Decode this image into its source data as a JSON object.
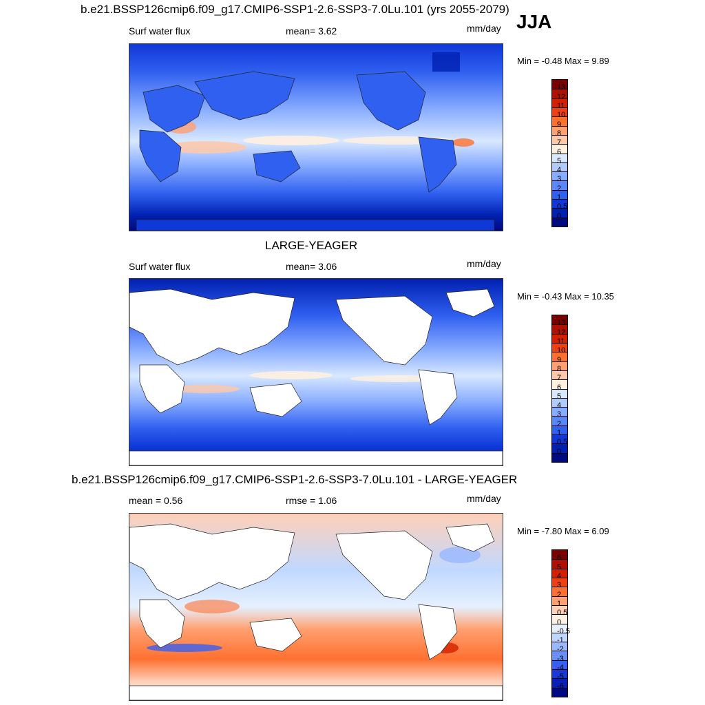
{
  "season": "JJA",
  "panels": [
    {
      "title": "b.e21.BSSP126cmip6.f09_g17.CMIP6-SSP1-2.6-SSP3-7.0Lu.101 (yrs 2055-2079)",
      "left_label": "Surf water flux",
      "center_label": "mean=   3.62",
      "units": "mm/day",
      "minmax": "Min =  -0.48 Max =   9.89",
      "colorbar_ticks": [
        "13",
        "12",
        "11",
        "10",
        "9",
        "8",
        "7",
        "6",
        "5",
        "4",
        "3",
        "2",
        "1",
        "0.5",
        "0"
      ],
      "colorbar_colors": [
        "#7a0000",
        "#b01000",
        "#d42000",
        "#f04010",
        "#ff7030",
        "#ffa070",
        "#ffc8a8",
        "#fff0e0",
        "#d8e8ff",
        "#b0ccff",
        "#88acff",
        "#5888f8",
        "#3060f0",
        "#1038d8",
        "#0020b0",
        "#000a80"
      ]
    },
    {
      "title": "LARGE-YEAGER",
      "left_label": "Surf water flux",
      "center_label": "mean=   3.06",
      "units": "mm/day",
      "minmax": "Min =  -0.43 Max =  10.35",
      "colorbar_ticks": [
        "13",
        "12",
        "11",
        "10",
        "9",
        "8",
        "7",
        "6",
        "5",
        "4",
        "3",
        "2",
        "1",
        "0.5",
        "0"
      ],
      "colorbar_colors": [
        "#7a0000",
        "#b01000",
        "#d42000",
        "#f04010",
        "#ff7030",
        "#ffa070",
        "#ffc8a8",
        "#fff0e0",
        "#d8e8ff",
        "#b0ccff",
        "#88acff",
        "#5888f8",
        "#3060f0",
        "#1038d8",
        "#0020b0",
        "#000a80"
      ]
    },
    {
      "title": "b.e21.BSSP126cmip6.f09_g17.CMIP6-SSP1-2.6-SSP3-7.0Lu.101 - LARGE-YEAGER",
      "left_label": "mean =   0.56",
      "center_label": "rmse =   1.06",
      "units": "mm/day",
      "minmax": "Min =  -7.80 Max =   6.09",
      "colorbar_ticks": [
        "6",
        "5",
        "4",
        "3",
        "2",
        "1",
        "0.5",
        "0",
        "-0.5",
        "-1",
        "-2",
        "-3",
        "-4",
        "-5",
        "-6"
      ],
      "colorbar_colors": [
        "#7a0000",
        "#b01000",
        "#d42000",
        "#f04010",
        "#ff7030",
        "#ffa070",
        "#ffd0b8",
        "#fff0e6",
        "#e6f0ff",
        "#c0d8ff",
        "#98b8ff",
        "#6890f8",
        "#3860f0",
        "#1838d8",
        "#0820b8",
        "#000a80"
      ]
    }
  ]
}
